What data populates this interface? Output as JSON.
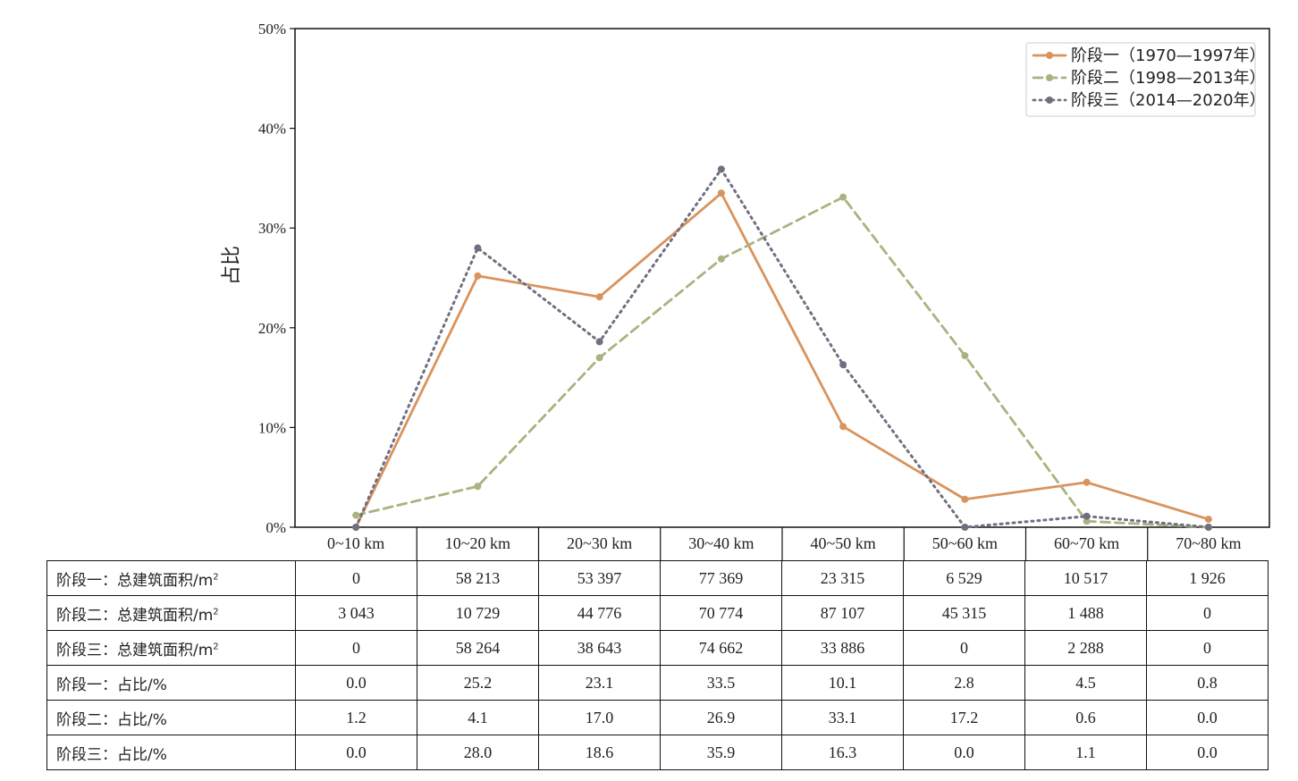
{
  "chart_data": {
    "type": "line",
    "title": "",
    "xlabel": "",
    "ylabel": "占比",
    "ylim": [
      0,
      50
    ],
    "yticks": [
      "0%",
      "10%",
      "20%",
      "30%",
      "40%",
      "50%"
    ],
    "categories": [
      "0~10 km",
      "10~20 km",
      "20~30 km",
      "30~40 km",
      "40~50 km",
      "50~60 km",
      "60~70 km",
      "70~80 km"
    ],
    "series": [
      {
        "name": "阶段一（1970—1997年）",
        "color": "#d9935c",
        "style": "solid",
        "values": [
          0.0,
          25.2,
          23.1,
          33.5,
          10.1,
          2.8,
          4.5,
          0.8
        ]
      },
      {
        "name": "阶段二（1998—2013年）",
        "color": "#a7b47f",
        "style": "dashed",
        "values": [
          1.2,
          4.1,
          17.0,
          26.9,
          33.1,
          17.2,
          0.6,
          0.0
        ]
      },
      {
        "name": "阶段三（2014—2020年）",
        "color": "#6f6f82",
        "style": "dotted",
        "values": [
          0.0,
          28.0,
          18.6,
          35.9,
          16.3,
          0.0,
          1.1,
          0.0
        ]
      }
    ],
    "legend_position": "top-right",
    "grid": false
  },
  "table": {
    "rows": [
      {
        "label": "阶段一：总建筑面积/m",
        "sup": "2",
        "cells": [
          "0",
          "58 213",
          "53 397",
          "77 369",
          "23 315",
          "6 529",
          "10 517",
          "1 926"
        ]
      },
      {
        "label": "阶段二：总建筑面积/m",
        "sup": "2",
        "cells": [
          "3 043",
          "10 729",
          "44 776",
          "70 774",
          "87 107",
          "45 315",
          "1 488",
          "0"
        ]
      },
      {
        "label": "阶段三：总建筑面积/m",
        "sup": "2",
        "cells": [
          "0",
          "58 264",
          "38 643",
          "74 662",
          "33 886",
          "0",
          "2 288",
          "0"
        ]
      },
      {
        "label": "阶段一：占比/%",
        "sup": "",
        "cells": [
          "0.0",
          "25.2",
          "23.1",
          "33.5",
          "10.1",
          "2.8",
          "4.5",
          "0.8"
        ]
      },
      {
        "label": "阶段二：占比/%",
        "sup": "",
        "cells": [
          "1.2",
          "4.1",
          "17.0",
          "26.9",
          "33.1",
          "17.2",
          "0.6",
          "0.0"
        ]
      },
      {
        "label": "阶段三：占比/%",
        "sup": "",
        "cells": [
          "0.0",
          "28.0",
          "18.6",
          "35.9",
          "16.3",
          "0.0",
          "1.1",
          "0.0"
        ]
      }
    ]
  }
}
